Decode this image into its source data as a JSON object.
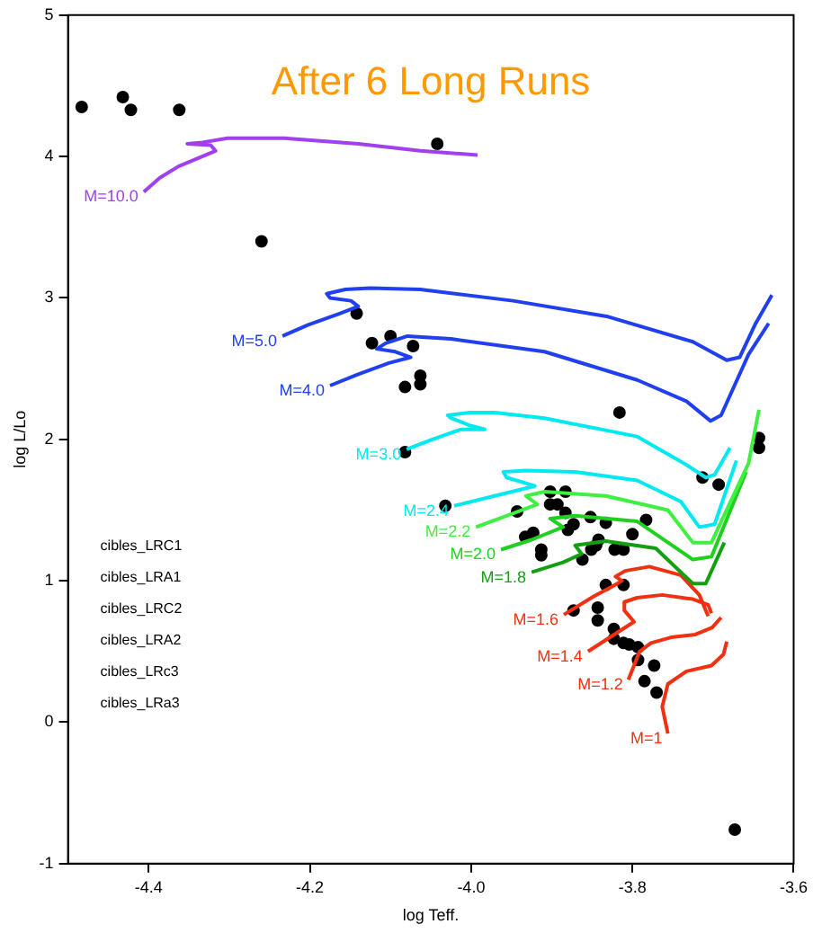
{
  "chart_data": {
    "type": "scatter",
    "title": "After 6 Long Runs",
    "xlabel": "log Teff.",
    "ylabel": "log L/Lo",
    "xlim": [
      -4.5,
      -3.6
    ],
    "xticks": [
      -4.4,
      -4.2,
      {
        "value": -4.0,
        "label": "-4.0"
      },
      -3.8,
      -3.6
    ],
    "ylim": [
      -1,
      5
    ],
    "yticks": [
      -1,
      0,
      1,
      2,
      3,
      4,
      5
    ],
    "grid": false,
    "legend": false,
    "annotations": [
      "cibles_LRC1",
      "cibles_LRA1",
      "cibles_LRC2",
      "cibles_LRA2",
      "cibles_LRc3",
      "cibles_LRa3"
    ],
    "series": [
      {
        "type": "line",
        "name": "M=10.0",
        "color": "#a040f0",
        "x": [
          -4.406,
          -4.386,
          -4.363,
          -4.317,
          -4.323,
          -4.352,
          -4.333,
          -4.302,
          -4.232,
          -4.14,
          -4.063,
          -3.992
        ],
        "values": [
          3.75,
          3.85,
          3.93,
          4.04,
          4.08,
          4.09,
          4.1,
          4.13,
          4.13,
          4.09,
          4.04,
          4.01
        ]
      },
      {
        "type": "line",
        "name": "M=5.0",
        "color": "#2040f0",
        "x": [
          -4.234,
          -4.202,
          -4.163,
          -4.14,
          -4.149,
          -4.175,
          -4.179,
          -4.156,
          -4.125,
          -4.063,
          -3.948,
          -3.832,
          -3.725,
          -3.683,
          -3.667,
          -3.648,
          -3.627
        ],
        "values": [
          2.73,
          2.81,
          2.89,
          2.94,
          2.98,
          3.0,
          3.03,
          3.06,
          3.07,
          3.06,
          2.98,
          2.87,
          2.69,
          2.56,
          2.58,
          2.81,
          3.02
        ]
      },
      {
        "type": "line",
        "name": "M=4.0",
        "color": "#2040f0",
        "x": [
          -4.175,
          -4.14,
          -4.102,
          -4.075,
          -4.094,
          -4.117,
          -4.106,
          -4.079,
          -4.025,
          -3.909,
          -3.794,
          -3.733,
          -3.703,
          -3.69,
          -3.656,
          -3.631
        ],
        "values": [
          2.38,
          2.46,
          2.54,
          2.58,
          2.62,
          2.64,
          2.68,
          2.73,
          2.71,
          2.62,
          2.42,
          2.27,
          2.13,
          2.17,
          2.6,
          2.82
        ]
      },
      {
        "type": "line",
        "name": "M=3.0",
        "color": "#00e8f0",
        "x": [
          -4.08,
          -4.048,
          -4.013,
          -3.983,
          -4.002,
          -4.025,
          -4.029,
          -4.002,
          -3.971,
          -3.909,
          -3.794,
          -3.733,
          -3.709,
          -3.698,
          -3.679
        ],
        "values": [
          1.93,
          2.0,
          2.07,
          2.07,
          2.1,
          2.15,
          2.17,
          2.19,
          2.19,
          2.15,
          2.02,
          1.82,
          1.73,
          1.75,
          1.94
        ]
      },
      {
        "type": "line",
        "name": "M=2.4",
        "color": "#00e8f0",
        "x": [
          -4.021,
          -3.971,
          -3.921,
          -3.932,
          -3.956,
          -3.96,
          -3.932,
          -3.871,
          -3.794,
          -3.74,
          -3.717,
          -3.698,
          -3.671
        ],
        "values": [
          1.53,
          1.6,
          1.67,
          1.69,
          1.73,
          1.77,
          1.78,
          1.77,
          1.71,
          1.56,
          1.38,
          1.4,
          1.85
        ]
      },
      {
        "type": "line",
        "name": "M=2.2",
        "color": "#40f040",
        "x": [
          -3.994,
          -3.956,
          -3.918,
          -3.932,
          -3.909,
          -3.833,
          -3.756,
          -3.725,
          -3.702,
          -3.656,
          -3.643
        ],
        "values": [
          1.38,
          1.46,
          1.54,
          1.6,
          1.63,
          1.6,
          1.5,
          1.27,
          1.27,
          1.83,
          2.21
        ]
      },
      {
        "type": "line",
        "name": "M=2.0",
        "color": "#20d020",
        "x": [
          -3.963,
          -3.925,
          -3.886,
          -3.902,
          -3.871,
          -3.794,
          -3.725,
          -3.702,
          -3.659
        ],
        "values": [
          1.22,
          1.29,
          1.38,
          1.44,
          1.46,
          1.42,
          1.15,
          1.17,
          1.77
        ]
      },
      {
        "type": "line",
        "name": "M=1.8",
        "color": "#10a010",
        "x": [
          -3.925,
          -3.886,
          -3.863,
          -3.871,
          -3.833,
          -3.771,
          -3.725,
          -3.709,
          -3.686
        ],
        "values": [
          1.06,
          1.13,
          1.19,
          1.25,
          1.28,
          1.23,
          0.98,
          0.98,
          1.27
        ]
      },
      {
        "type": "line",
        "name": "M=1.6",
        "color": "#f03010",
        "x": [
          -3.885,
          -3.848,
          -3.825,
          -3.813,
          -3.821,
          -3.809,
          -3.779,
          -3.74,
          -3.717,
          -3.706
        ],
        "values": [
          0.76,
          0.89,
          0.96,
          1.0,
          1.03,
          1.07,
          1.1,
          1.04,
          0.9,
          0.75
        ]
      },
      {
        "type": "line",
        "name": "M=1.4",
        "color": "#f03010",
        "x": [
          -3.855,
          -3.817,
          -3.798,
          -3.81,
          -3.81,
          -3.794,
          -3.763,
          -3.725,
          -3.706,
          -3.702
        ],
        "values": [
          0.5,
          0.64,
          0.71,
          0.79,
          0.85,
          0.88,
          0.9,
          0.87,
          0.83,
          0.77
        ]
      },
      {
        "type": "line",
        "name": "M=1.2",
        "color": "#f03010",
        "x": [
          -3.805,
          -3.791,
          -3.777,
          -3.752,
          -3.722,
          -3.701,
          -3.69
        ],
        "values": [
          0.3,
          0.5,
          0.56,
          0.6,
          0.62,
          0.67,
          0.74
        ]
      },
      {
        "type": "line",
        "name": "M=1",
        "color": "#f03010",
        "x": [
          -3.756,
          -3.763,
          -3.756,
          -3.733,
          -3.702,
          -3.687,
          -3.683
        ],
        "values": [
          -0.08,
          0.11,
          0.27,
          0.36,
          0.4,
          0.48,
          0.57
        ]
      },
      {
        "type": "scatter",
        "color": "#000000",
        "marker": "circle",
        "x": [
          -4.483,
          -4.432,
          -4.422,
          -4.362,
          -4.042,
          -4.26,
          -4.142,
          -4.123,
          -4.1,
          -4.072,
          -4.063,
          -4.063,
          -4.082,
          -3.816,
          -4.082,
          -3.643,
          -3.643,
          -3.713,
          -3.693,
          -4.032,
          -3.902,
          -3.883,
          -3.902,
          -3.893,
          -3.883,
          -3.943,
          -3.852,
          -3.833,
          -3.783,
          -3.873,
          -3.88,
          -3.933,
          -3.923,
          -3.8,
          -3.842,
          -3.845,
          -3.851,
          -3.913,
          -3.913,
          -3.822,
          -3.811,
          -3.862,
          -3.833,
          -3.811,
          -3.873,
          -3.843,
          -3.843,
          -3.823,
          -3.823,
          -3.811,
          -3.804,
          -3.793,
          -3.793,
          -3.773,
          -3.785,
          -3.77,
          -3.673
        ],
        "values": [
          4.35,
          4.42,
          4.33,
          4.33,
          4.09,
          3.4,
          2.89,
          2.68,
          2.73,
          2.66,
          2.45,
          2.39,
          2.37,
          2.19,
          1.91,
          2.01,
          1.94,
          1.73,
          1.68,
          1.53,
          1.63,
          1.63,
          1.54,
          1.54,
          1.48,
          1.49,
          1.45,
          1.41,
          1.43,
          1.4,
          1.36,
          1.31,
          1.34,
          1.33,
          1.29,
          1.25,
          1.22,
          1.22,
          1.18,
          1.22,
          1.22,
          1.15,
          0.97,
          0.97,
          0.79,
          0.81,
          0.72,
          0.66,
          0.59,
          0.56,
          0.55,
          0.53,
          0.44,
          0.4,
          0.29,
          0.21,
          -0.76
        ]
      }
    ]
  }
}
